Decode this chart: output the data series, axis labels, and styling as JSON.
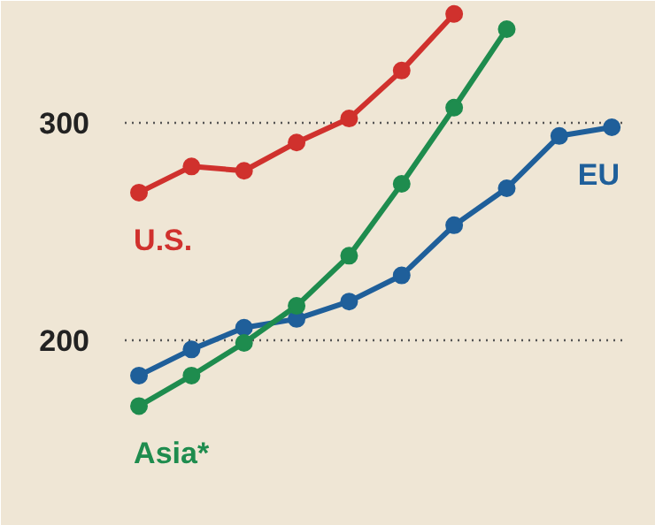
{
  "chart_data": {
    "type": "line",
    "categories": [
      null,
      null,
      null,
      null,
      null,
      null,
      null,
      null,
      null,
      null
    ],
    "ylim": [
      115,
      356
    ],
    "yticks": [
      200,
      300
    ],
    "grid": "y",
    "marker": "circle",
    "line_style": "solid",
    "series": [
      {
        "name": "U.S.",
        "color": "#d0312d",
        "values": [
          268,
          280,
          278,
          291,
          302,
          324,
          350,
          null,
          null,
          null
        ]
      },
      {
        "name": "EU",
        "color": "#1f5f9a",
        "values": [
          184,
          196,
          206,
          210,
          218,
          230,
          253,
          270,
          294,
          298
        ]
      },
      {
        "name": "Asia*",
        "color": "#1e8c4e",
        "values": [
          170,
          184,
          199,
          216,
          239,
          272,
          307,
          343,
          null,
          null
        ]
      }
    ]
  }
}
